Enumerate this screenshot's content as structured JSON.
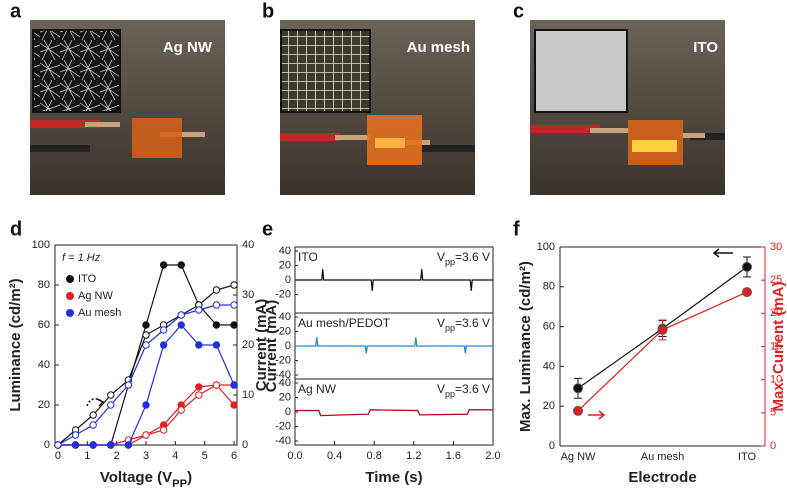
{
  "photos": [
    {
      "letter": "a",
      "label": "Ag NW"
    },
    {
      "letter": "b",
      "label": "Au mesh"
    },
    {
      "letter": "c",
      "label": "ITO"
    }
  ],
  "chart_data": [
    {
      "type": "line",
      "panel_letter": "d",
      "annotation": "f = 1 Hz",
      "x_label": {
        "text": "Voltage (V",
        "sub": "PP",
        "end": ")"
      },
      "y_label": "Luminance (cd/m²)",
      "y2_label": "Current (mA)",
      "x": [
        0,
        0.6,
        1.2,
        1.8,
        2.4,
        3.0,
        3.6,
        4.2,
        4.8,
        5.4,
        6.0
      ],
      "xlim": [
        -0.1,
        6.1
      ],
      "xticks": [
        0,
        1,
        2,
        3,
        4,
        5,
        6
      ],
      "ylim": [
        0,
        100
      ],
      "yticks": [
        0,
        20,
        40,
        60,
        80,
        100
      ],
      "y2lim": [
        0,
        40
      ],
      "y2ticks": [
        0,
        10,
        20,
        30,
        40
      ],
      "series": [
        {
          "name": "ITO",
          "color": "#111111",
          "values": [
            0,
            0,
            0,
            0,
            30,
            60,
            90,
            90,
            70,
            60,
            60
          ],
          "current": [
            0,
            3,
            6,
            10,
            13,
            22,
            24,
            26,
            28,
            31,
            32
          ]
        },
        {
          "name": "Ag NW",
          "color": "#e02020",
          "values": [
            0,
            0,
            0,
            0,
            0,
            5,
            10,
            20,
            29,
            30,
            20
          ],
          "current": [
            0,
            0,
            0,
            0,
            1,
            2,
            3,
            7,
            10,
            12,
            12
          ]
        },
        {
          "name": "Au mesh",
          "color": "#2030e0",
          "values": [
            0,
            0,
            0,
            0,
            0,
            20,
            50,
            60,
            50,
            50,
            30
          ],
          "current": [
            0,
            2,
            4,
            8,
            12,
            20,
            23,
            26,
            27,
            28,
            28
          ]
        }
      ]
    },
    {
      "type": "stacked-line",
      "panel_letter": "e",
      "x_label": "Time (s)",
      "y_label": "Current (mA)",
      "note": {
        "text": "V",
        "sub": "pp",
        "end": "=3.6 V"
      },
      "xlim": [
        0,
        2
      ],
      "xticks": [
        {
          "value": 0,
          "label": "0.0"
        },
        0.4,
        0.8,
        1.2,
        1.6,
        {
          "value": 2,
          "label": "2.0"
        }
      ],
      "ylim": [
        -40,
        40
      ],
      "panels": [
        {
          "name": "ITO",
          "color": "#111111",
          "yticks": [
            40,
            20,
            0,
            -20
          ],
          "x": [
            0,
            0.27,
            0.28,
            0.29,
            0.77,
            0.78,
            0.79,
            1.27,
            1.28,
            1.29,
            1.77,
            1.78,
            1.79,
            2.0
          ],
          "values": [
            0,
            0,
            15,
            0,
            0,
            -15,
            0,
            0,
            15,
            0,
            0,
            -15,
            0,
            0
          ]
        },
        {
          "name": "Au mesh/PEDOT",
          "color": "#1f8fc8",
          "yticks": [
            40,
            20,
            0,
            -20,
            -40
          ],
          "x": [
            0,
            0.21,
            0.22,
            0.23,
            0.71,
            0.72,
            0.73,
            1.21,
            1.22,
            1.23,
            1.71,
            1.72,
            1.73,
            2.0
          ],
          "values": [
            0,
            0,
            12,
            0,
            0,
            -10,
            0,
            0,
            12,
            0,
            0,
            -10,
            0,
            0
          ]
        },
        {
          "name": "Ag NW",
          "color": "#b0101c",
          "yticks": [
            40,
            20,
            0,
            -20,
            -40
          ],
          "x": [
            0,
            0.24,
            0.26,
            0.74,
            0.76,
            1.24,
            1.26,
            1.74,
            1.76,
            2.0
          ],
          "values": [
            2,
            2,
            -5,
            -3,
            3,
            2,
            -4,
            -3,
            3,
            3
          ]
        }
      ]
    },
    {
      "type": "errorbar",
      "panel_letter": "f",
      "x_label": "Electrode",
      "y_label": "Max. Luminance (cd/m²)",
      "y2_label": "Max. Current (mA)",
      "categories": [
        "Ag NW",
        "Au mesh",
        "ITO"
      ],
      "ylim": [
        0,
        100
      ],
      "yticks": [
        0,
        20,
        40,
        60,
        80,
        100
      ],
      "y2lim": [
        0,
        30
      ],
      "y2ticks": [
        0,
        5,
        10,
        15,
        20,
        25,
        30
      ],
      "series": [
        {
          "name": "Max. Luminance",
          "color": "#111111",
          "values": [
            29,
            59,
            90
          ],
          "errors": [
            5,
            4,
            5
          ]
        },
        {
          "name": "Max. Current",
          "color": "#e02020",
          "axis": "y2",
          "values": [
            5.3,
            17.5,
            23.2
          ],
          "errors": [
            0.3,
            1.5,
            0.3
          ]
        }
      ]
    }
  ]
}
